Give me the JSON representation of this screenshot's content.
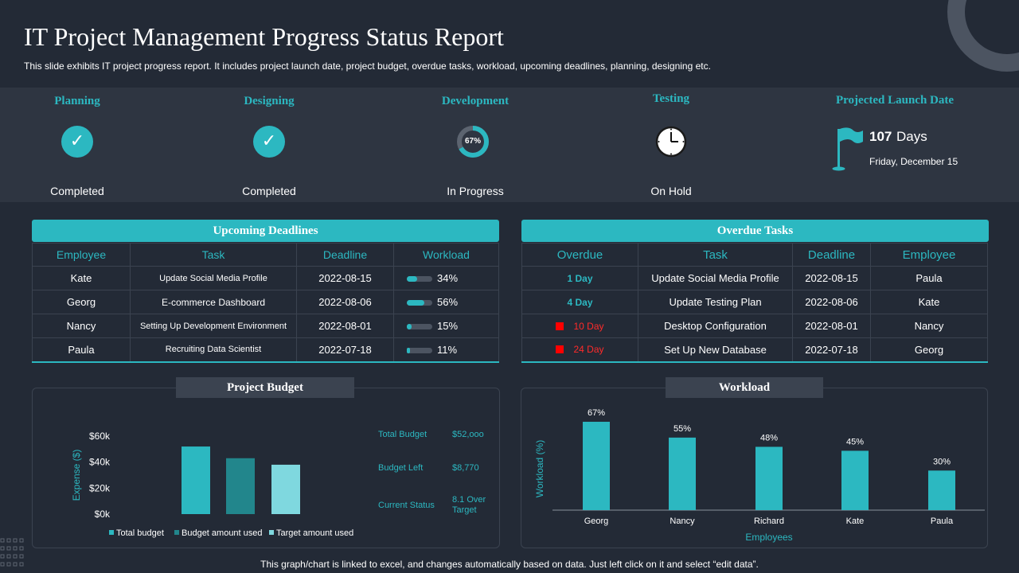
{
  "header": {
    "title": "IT Project Management Progress Status Report",
    "subtitle": "This slide exhibits IT project progress report. It includes project launch date, project budget, overdue tasks, workload, upcoming deadlines, planning, designing etc."
  },
  "stages": [
    {
      "name": "Planning",
      "status": "Completed",
      "icon": "check-icon"
    },
    {
      "name": "Designing",
      "status": "Completed",
      "icon": "check-icon"
    },
    {
      "name": "Development",
      "status": "In Progress",
      "icon": "progress-ring-icon",
      "progress_label": "67%",
      "progress": 0.67
    },
    {
      "name": "Testing",
      "status": "On Hold",
      "icon": "clock-icon"
    }
  ],
  "launch": {
    "title": "Projected Launch Date",
    "days_number": "107",
    "days_word": "Days",
    "date": "Friday, December 15",
    "icon": "flag-icon"
  },
  "upcoming": {
    "title": "Upcoming   Deadlines",
    "columns": [
      "Employee",
      "Task",
      "Deadline",
      "Workload"
    ],
    "rows": [
      {
        "employee": "Kate",
        "task": "Update Social Media Profile",
        "deadline": "2022-08-15",
        "workload": "34%",
        "workload_value": 0.34
      },
      {
        "employee": "Georg",
        "task": "E-commerce Dashboard",
        "deadline": "2022-08-06",
        "workload": "56%",
        "workload_value": 0.56
      },
      {
        "employee": "Nancy",
        "task": "Setting Up Development Environment",
        "deadline": "2022-08-01",
        "workload": "15%",
        "workload_value": 0.15
      },
      {
        "employee": "Paula",
        "task": "Recruiting Data Scientist",
        "deadline": "2022-07-18",
        "workload": "11%",
        "workload_value": 0.11
      }
    ]
  },
  "overdue": {
    "title": "Overdue Tasks",
    "columns": [
      "Overdue",
      "Task",
      "Deadline",
      "Employee"
    ],
    "rows": [
      {
        "overdue": "1 Day",
        "task": "Update Social Media Profile",
        "deadline": "2022-08-15",
        "employee": "Paula",
        "severity": "normal"
      },
      {
        "overdue": "4 Day",
        "task": "Update Testing Plan",
        "deadline": "2022-08-06",
        "employee": "Kate",
        "severity": "normal"
      },
      {
        "overdue": "10 Day",
        "task": "Desktop Configuration",
        "deadline": "2022-08-01",
        "employee": "Nancy",
        "severity": "critical"
      },
      {
        "overdue": "24 Day",
        "task": "Set Up New Database",
        "deadline": "2022-07-18",
        "employee": "Georg",
        "severity": "critical"
      }
    ]
  },
  "budget": {
    "title": "Project Budget",
    "stats": [
      {
        "label": "Total Budget",
        "value": "$52,ooo"
      },
      {
        "label": "Budget Left",
        "value": "$8,770"
      },
      {
        "label": "Current Status",
        "value": "8.1 Over Target"
      }
    ]
  },
  "workload_chart_title": "Workload",
  "footer": "This graph/chart is linked to excel,  and changes automatically based on data. Just left click on it and select “edit data”.",
  "colors": {
    "accent": "#2cb8c1",
    "background": "#232a36",
    "band": "#2e3541",
    "critical": "#ff0000"
  },
  "chart_data": [
    {
      "type": "bar",
      "title": "Project Budget",
      "ylabel": "Expense ($)",
      "xlabel": "",
      "ylim": [
        0,
        60000
      ],
      "yticks": [
        "$0k",
        "$20k",
        "$40k",
        "$60k"
      ],
      "ytick_values": [
        0,
        20000,
        40000,
        60000
      ],
      "series": [
        {
          "name": "Total budget",
          "values": [
            52000
          ],
          "color": "#2cb8c1"
        },
        {
          "name": "Budget amount used",
          "values": [
            43000
          ],
          "color": "#22868c"
        },
        {
          "name": "Target amount used",
          "values": [
            38000
          ],
          "color": "#7fd8df"
        }
      ],
      "legend": "bottom",
      "grid": false
    },
    {
      "type": "bar",
      "title": "Workload",
      "xlabel": "Employees",
      "ylabel": "Workload (%)",
      "ylim": [
        0,
        70
      ],
      "categories": [
        "Georg",
        "Nancy",
        "Richard",
        "Kate",
        "Paula"
      ],
      "values": [
        67,
        55,
        48,
        45,
        30
      ],
      "labels": [
        "67%",
        "55%",
        "48%",
        "45%",
        "30%"
      ],
      "grid": false
    }
  ]
}
